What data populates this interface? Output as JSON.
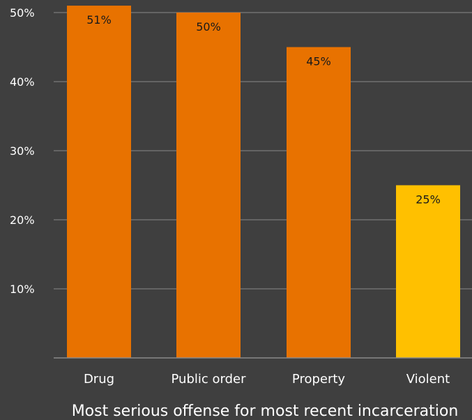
{
  "chart_data": {
    "type": "bar",
    "categories": [
      "Drug",
      "Public order",
      "Property",
      "Violent"
    ],
    "values": [
      51,
      50,
      45,
      25
    ],
    "data_labels": [
      "51%",
      "50%",
      "45%",
      "25%"
    ],
    "xlabel": "Most serious offense for most recent incarceration",
    "ylabel": "",
    "title": "",
    "ylim": [
      0,
      50
    ],
    "yticks": [
      10,
      20,
      30,
      40,
      50
    ],
    "ytick_labels": [
      "10%",
      "20%",
      "30%",
      "40%",
      "50%"
    ],
    "grid": true,
    "bar_colors": [
      "#e87200",
      "#e87200",
      "#e87200",
      "#ffc000"
    ],
    "grid_color": "#8a8a8a"
  }
}
